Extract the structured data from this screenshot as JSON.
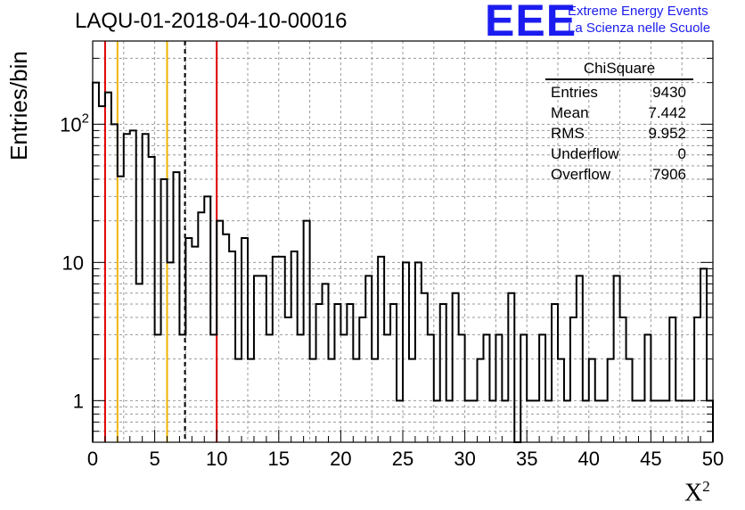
{
  "title": "LAQU-01-2018-04-10-00016",
  "logo": {
    "mark": "EEE",
    "line1": "Extreme Energy Events",
    "line2": "La Scienza nelle Scuole",
    "color": "#1c1cf0"
  },
  "stats": {
    "title": "ChiSquare",
    "rows": [
      {
        "label": "Entries",
        "value": "9430"
      },
      {
        "label": "Mean",
        "value": "7.442"
      },
      {
        "label": "RMS",
        "value": "9.952"
      },
      {
        "label": "Underflow",
        "value": "0"
      },
      {
        "label": "Overflow",
        "value": "7906"
      }
    ]
  },
  "chart_data": {
    "type": "bar",
    "histogram": true,
    "title": "LAQU-01-2018-04-10-00016",
    "xlabel": "X",
    "xlabel_sup": "2",
    "ylabel": "Entries/bin",
    "xlim": [
      0,
      50
    ],
    "ylim": [
      0.5,
      400
    ],
    "yscale": "log",
    "grid": true,
    "bin_width": 0.5,
    "bins_start": 0,
    "counts": [
      200,
      135,
      170,
      100,
      42,
      85,
      90,
      7,
      85,
      58,
      3,
      40,
      10,
      45,
      3,
      15,
      13,
      23,
      30,
      3,
      20,
      16,
      12,
      2,
      15,
      2,
      8,
      8,
      3,
      11,
      11,
      4,
      12,
      3,
      20,
      2,
      5,
      7,
      2,
      5,
      3,
      5,
      2,
      4,
      8,
      2,
      11,
      3,
      5,
      1,
      10,
      2,
      10,
      6,
      3,
      1,
      5,
      1,
      6,
      3,
      1,
      1,
      2,
      3,
      1,
      3,
      1,
      6,
      0,
      3,
      1,
      1,
      3,
      1,
      5,
      2,
      1,
      4,
      8,
      1,
      2,
      1,
      1,
      2,
      8,
      4,
      2,
      1,
      1,
      3,
      1,
      1,
      1,
      4,
      1,
      1,
      1,
      4,
      9,
      1
    ],
    "xticks": [
      0,
      5,
      10,
      15,
      20,
      25,
      30,
      35,
      40,
      45,
      50
    ],
    "yticks": [
      1,
      10,
      100
    ],
    "ytick_labels": [
      "1",
      "10",
      "10^2"
    ],
    "vlines": [
      {
        "x": 1,
        "color": "#e00000",
        "style": "solid"
      },
      {
        "x": 2,
        "color": "#f0b400",
        "style": "solid"
      },
      {
        "x": 6,
        "color": "#f0b400",
        "style": "solid"
      },
      {
        "x": 7.44,
        "color": "#000000",
        "style": "dashed"
      },
      {
        "x": 10,
        "color": "#e00000",
        "style": "solid"
      }
    ]
  }
}
